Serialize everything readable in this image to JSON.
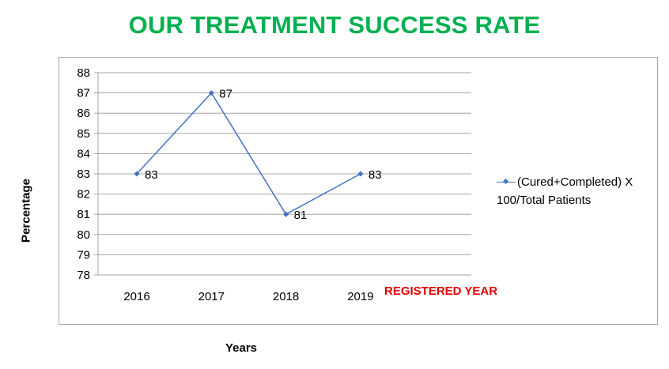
{
  "title": "OUR TREATMENT SUCCESS RATE",
  "annotation": "REGISTERED YEAR",
  "colors": {
    "title": "#00b050",
    "line": "#4472c4",
    "annotation": "#e60000",
    "grid": "#a6a6a6"
  },
  "chart_data": {
    "type": "line",
    "categories": [
      "2016",
      "2017",
      "2018",
      "2019"
    ],
    "series": [
      {
        "name": "(Cured+Completed) X 100/Total Patients",
        "values": [
          83,
          87,
          81,
          83
        ]
      }
    ],
    "xlabel": "Years",
    "ylabel": "Percentage",
    "ylim": [
      78,
      88
    ],
    "yticks": [
      "78",
      "79",
      "80",
      "81",
      "82",
      "83",
      "84",
      "85",
      "86",
      "87",
      "88"
    ],
    "data_labels": [
      "83",
      "87",
      "81",
      "83"
    ],
    "grid": true,
    "legend_position": "right"
  }
}
